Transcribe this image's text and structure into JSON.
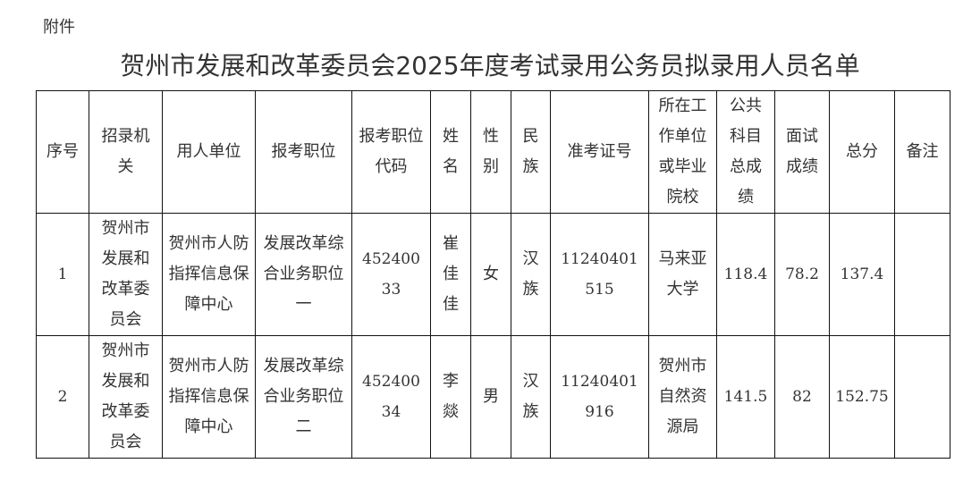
{
  "attachment_label": "附件",
  "title": "贺州市发展和改革委员会2025年度考试录用公务员拟录用人员名单",
  "table": {
    "headers": [
      "序号",
      "招录机关",
      "用人单位",
      "报考职位",
      "报考职位代码",
      "姓名",
      "性别",
      "民族",
      "准考证号",
      "所在工作单位或毕业院校",
      "公共科目总成绩",
      "面试成绩",
      "总分",
      "备注"
    ],
    "rows": [
      [
        "1",
        "贺州市发展和改革委员会",
        "贺州市人防指挥信息保障中心",
        "发展改革综合业务职位一",
        "45240033",
        "崔佳佳",
        "女",
        "汉族",
        "11240401515",
        "马来亚大学",
        "118.4",
        "78.2",
        "137.4",
        ""
      ],
      [
        "2",
        "贺州市发展和改革委员会",
        "贺州市人防指挥信息保障中心",
        "发展改革综合业务职位二",
        "45240034",
        "李燚",
        "男",
        "汉族",
        "11240401916",
        "贺州市自然资源局",
        "141.5",
        "82",
        "152.75",
        ""
      ]
    ]
  }
}
